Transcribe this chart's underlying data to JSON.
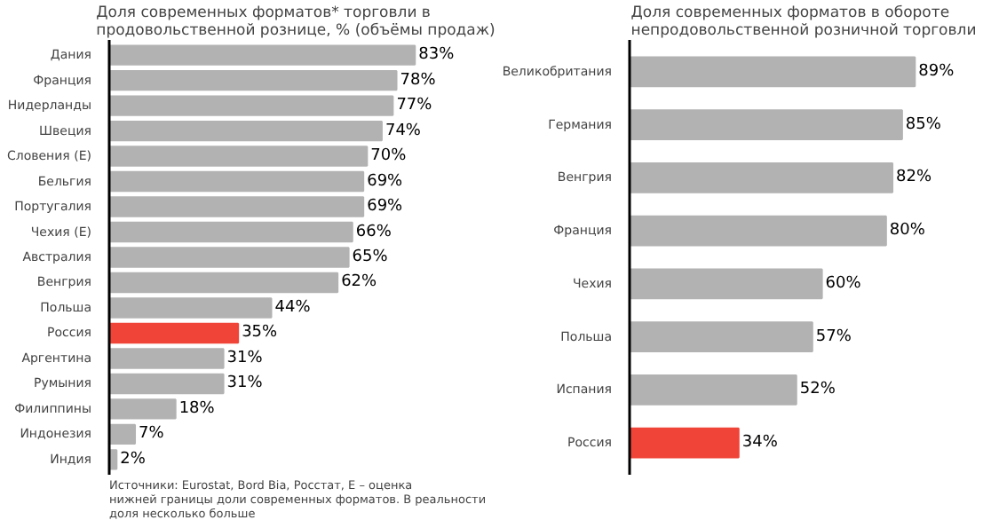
{
  "chart_data": [
    {
      "type": "bar",
      "orientation": "horizontal",
      "title": "Доля современных форматов* торговли в продовольственной рознице, % (объёмы продаж)",
      "categories": [
        "Дания",
        "Франция",
        "Нидерланды",
        "Швеция",
        "Словения (E)",
        "Бельгия",
        "Португалия",
        "Чехия (E)",
        "Австралия",
        "Венгрия",
        "Польша",
        "Россия",
        "Аргентина",
        "Румыния",
        "Филиппины",
        "Индонезия",
        "Индия"
      ],
      "values": [
        83,
        78,
        77,
        74,
        70,
        69,
        69,
        66,
        65,
        62,
        44,
        35,
        31,
        31,
        18,
        7,
        2
      ],
      "value_labels": [
        "83%",
        "78%",
        "77%",
        "74%",
        "70%",
        "69%",
        "69%",
        "66%",
        "65%",
        "62%",
        "44%",
        "35%",
        "31%",
        "31%",
        "18%",
        "7%",
        "2%"
      ],
      "colors": [
        "#b2b2b2",
        "#b2b2b2",
        "#b2b2b2",
        "#b2b2b2",
        "#b2b2b2",
        "#b2b2b2",
        "#b2b2b2",
        "#b2b2b2",
        "#b2b2b2",
        "#b2b2b2",
        "#b2b2b2",
        "#f04438",
        "#b2b2b2",
        "#b2b2b2",
        "#b2b2b2",
        "#b2b2b2",
        "#b2b2b2"
      ],
      "annotations": [
        "Источники: Eurostat, Bord Bia, Росстат, E – оценка нижней границы доли современных форматов. В реальности доля несколько больше"
      ],
      "grid": false,
      "legend": false
    },
    {
      "type": "bar",
      "orientation": "horizontal",
      "title": "Доля современных форматов в обороте непродовольственной розничной торговли",
      "categories": [
        "Великобритания",
        "Германия",
        "Венгрия",
        "Франция",
        "Чехия",
        "Польша",
        "Испания",
        "Россия"
      ],
      "values": [
        89,
        85,
        82,
        80,
        60,
        57,
        52,
        34
      ],
      "value_labels": [
        "89%",
        "85%",
        "82%",
        "80%",
        "60%",
        "57%",
        "52%",
        "34%"
      ],
      "colors": [
        "#b2b2b2",
        "#b2b2b2",
        "#b2b2b2",
        "#b2b2b2",
        "#b2b2b2",
        "#b2b2b2",
        "#b2b2b2",
        "#f04438"
      ],
      "grid": false,
      "legend": false
    }
  ]
}
